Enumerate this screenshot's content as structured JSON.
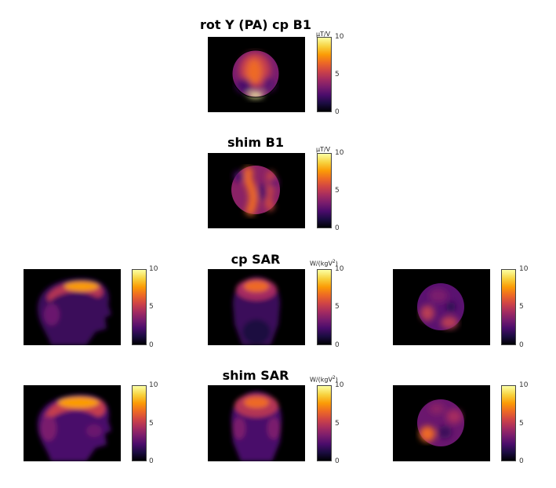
{
  "colormap": "inferno",
  "colors": {
    "background": "#ffffff",
    "panel_bg": "#000000",
    "inferno": [
      "#000004",
      "#1b0c41",
      "#4a0c6b",
      "#781c6d",
      "#a52c60",
      "#cf4446",
      "#ed6925",
      "#fb9b06",
      "#f7d13d",
      "#fcffa4"
    ]
  },
  "rows": [
    {
      "title": "rot Y (PA) cp B1",
      "unit": "μT/V",
      "ticks": [
        "10",
        "5",
        "0"
      ],
      "panels": [
        "axial-b1-cp"
      ]
    },
    {
      "title": "shim B1",
      "unit": "μT/V",
      "ticks": [
        "10",
        "5",
        "0"
      ],
      "panels": [
        "axial-b1-shim"
      ]
    },
    {
      "title": "cp SAR",
      "unit_main": "W/(kgV",
      "unit_sup": "2",
      "unit_end": ")",
      "ticks": [
        "10",
        "5",
        "0"
      ],
      "panels": [
        "sagittal-sar-cp",
        "coronal-sar-cp",
        "axial-sar-cp"
      ]
    },
    {
      "title": "shim SAR",
      "unit_main": "W/(kgV",
      "unit_sup": "2",
      "unit_end": ")",
      "ticks": [
        "10",
        "5",
        "0"
      ],
      "panels": [
        "sagittal-sar-shim",
        "coronal-sar-shim",
        "axial-sar-shim"
      ]
    }
  ]
}
